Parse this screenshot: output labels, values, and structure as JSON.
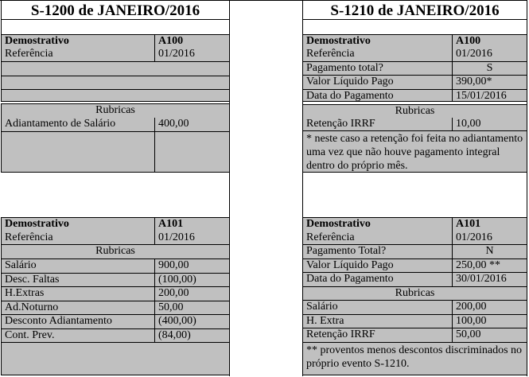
{
  "s1200": {
    "title": "S-1200 de JANEIRO/2016",
    "a100": {
      "demonstrativo": [
        {
          "label": "Demostrativo",
          "value": "A100"
        },
        {
          "label": "Referência",
          "value": "01/2016"
        },
        {},
        {},
        {}
      ],
      "rubricas": [
        {
          "text": "Rubricas"
        },
        {
          "label": "Adiantamento de Salário",
          "value": "400,00"
        },
        {}
      ]
    },
    "a101": {
      "rows": [
        {
          "label": "Demostrativo",
          "value": "A101"
        },
        {
          "label": "Referência",
          "value": "01/2016"
        },
        {
          "text": "Rubricas"
        },
        {
          "label": "Salário",
          "value": "900,00"
        },
        {
          "label": "Desc. Faltas",
          "value": "(100,00)"
        },
        {
          "label": "H.Extras",
          "value": "200,00"
        },
        {
          "label": "Ad.Noturno",
          "value": "50,00"
        },
        {
          "label": "Desconto Adiantamento",
          "value": "(400,00)"
        },
        {
          "label": "Cont. Prev.",
          "value": "(84,00)"
        },
        {}
      ]
    }
  },
  "s1210": {
    "title": "S-1210 de JANEIRO/2016",
    "a100": {
      "demonstrativo": [
        {
          "label": "Demostrativo",
          "value": "A100"
        },
        {
          "label": "Referência",
          "value": "01/2016"
        },
        {
          "label": "Pagamento total?",
          "value": "S"
        },
        {
          "label": "Valor Líquido Pago",
          "value": "390,00*"
        },
        {
          "label": "Data do Pagamento",
          "value": "15/01/2016"
        }
      ],
      "rubricas": [
        {
          "text": "Rubricas"
        },
        {
          "label": "Retenção IRRF",
          "value": "10,00"
        },
        {
          "note": "* neste caso a retenção foi feita no adiantamento uma vez que não houve pagamento integral dentro do próprio mês."
        }
      ]
    },
    "a101": {
      "rows": [
        {
          "label": "Demostrativo",
          "value": "A101"
        },
        {
          "label": "Referência",
          "value": "01/2016"
        },
        {
          "label": "Pagamento Total?",
          "value": "N"
        },
        {
          "label": "Valor Líquido Pago",
          "value": "250,00 **"
        },
        {
          "label": "Data do Pagamento",
          "value": "30/01/2016"
        },
        {
          "text": "Rubricas"
        },
        {
          "label": "Salário",
          "value": "200,00"
        },
        {
          "label": "H. Extra",
          "value": "100,00"
        },
        {
          "label": "Retenção IRRF",
          "value": "50,00"
        },
        {
          "note": "** proventos menos descontos discriminados no próprio evento S-1210."
        }
      ]
    }
  }
}
